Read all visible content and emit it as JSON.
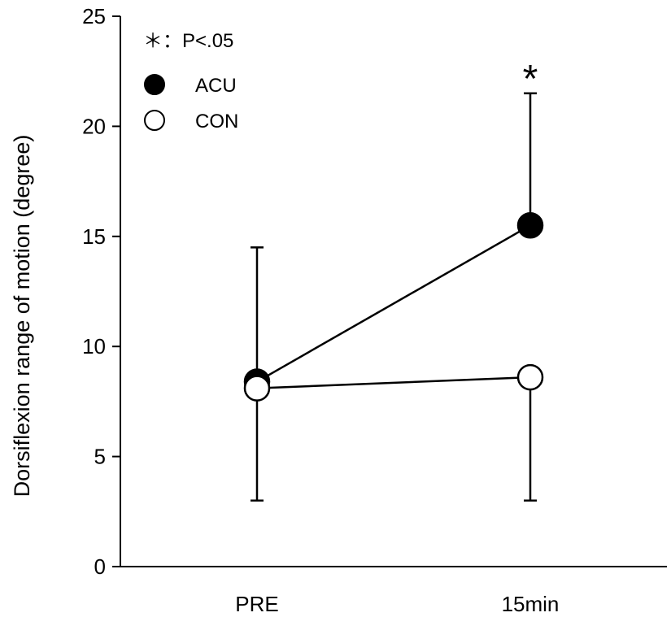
{
  "chart_data": {
    "type": "line",
    "title": "",
    "xlabel": "",
    "ylabel": "Dorsiflexion range of motion (degree)",
    "ylim": [
      0,
      25
    ],
    "yticks": [
      0,
      5,
      10,
      15,
      20,
      25
    ],
    "categories": [
      "PRE",
      "15min"
    ],
    "series": [
      {
        "name": "ACU",
        "marker": "filled-circle",
        "color": "#000000",
        "values": [
          8.4,
          15.5
        ],
        "error_upper": [
          14.5,
          21.5
        ]
      },
      {
        "name": "CON",
        "marker": "open-circle",
        "color": "#000000",
        "values": [
          8.1,
          8.6
        ],
        "error_lower": [
          3.0,
          3.0
        ]
      }
    ],
    "significance": {
      "symbol": "*",
      "legend_symbol": "＊",
      "legend_label": "：P<.05",
      "category": "15min"
    },
    "grid": false,
    "legend_position": "top-left"
  }
}
